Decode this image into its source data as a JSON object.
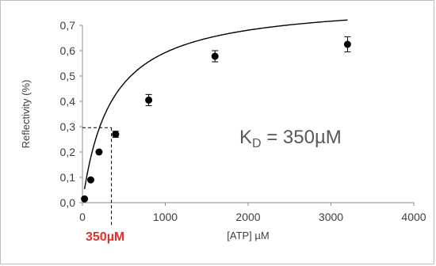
{
  "chart_data": {
    "type": "scatter",
    "xlabel": "[ATP] µM",
    "ylabel": "Reflectivity (%)",
    "xlim": [
      0,
      4000
    ],
    "ylim": [
      0,
      0.7
    ],
    "x_ticks": [
      "0",
      "1000",
      "2000",
      "3000",
      "4000"
    ],
    "y_ticks": [
      "0,0",
      "0,1",
      "0,2",
      "0,3",
      "0,4",
      "0,5",
      "0,6",
      "0,7"
    ],
    "grid": false,
    "points": [
      {
        "x": 25,
        "y": 0.015,
        "err": 0
      },
      {
        "x": 100,
        "y": 0.09,
        "err": 0
      },
      {
        "x": 200,
        "y": 0.2,
        "err": 0
      },
      {
        "x": 400,
        "y": 0.27,
        "err": 0.012
      },
      {
        "x": 800,
        "y": 0.405,
        "err": 0.022
      },
      {
        "x": 1600,
        "y": 0.578,
        "err": 0.022
      },
      {
        "x": 3200,
        "y": 0.625,
        "err": 0.03
      }
    ],
    "fit": {
      "model": "binding",
      "bmax": 0.8,
      "kd": 350
    },
    "annotation": {
      "kd_main": "K",
      "kd_sub": "D",
      "kd_rest": " = 350µM",
      "marker_text": "350µM",
      "marker_x": 350,
      "marker_y": 0.296
    }
  }
}
